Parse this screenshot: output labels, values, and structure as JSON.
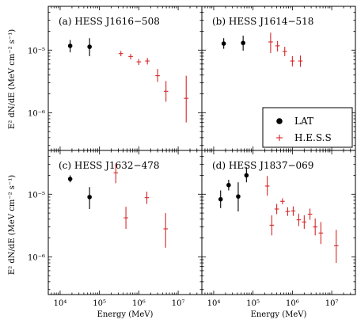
{
  "figure": {
    "xlabel": "Energy (MeV)",
    "ylabel": "E² dN/dE (MeV cm⁻² s⁻¹)",
    "legend": {
      "placement": "panel-b-lower-right",
      "entries": [
        "LAT",
        "H.E.S.S"
      ]
    },
    "colors": {
      "LAT": "#000000",
      "H.E.S.S": "#d62728"
    }
  },
  "chart_data": [
    {
      "type": "scatter",
      "title": "(a) HESS J1616−508",
      "xscale": "log",
      "yscale": "log",
      "xlim": [
        5000,
        40000000
      ],
      "ylim": [
        2.5e-07,
        5e-05
      ],
      "xticks": [
        10000,
        100000,
        1000000,
        10000000
      ],
      "xticklabels": [
        "10⁴",
        "10⁵",
        "10⁶",
        "10⁷"
      ],
      "yticks": [
        1e-06,
        1e-05
      ],
      "yticklabels": [
        "10⁻⁶",
        "10⁻⁵"
      ],
      "series": [
        {
          "name": "LAT",
          "points": [
            {
              "x": 18000,
              "y": 1.17e-05,
              "ylo": 9.2e-06,
              "yhi": 1.45e-05
            },
            {
              "x": 56000,
              "y": 1.13e-05,
              "ylo": 8e-06,
              "yhi": 1.55e-05
            }
          ]
        },
        {
          "name": "H.E.S.S",
          "points": [
            {
              "x": 350000,
              "y": 8.8e-06,
              "ylo": 8e-06,
              "yhi": 9.7e-06
            },
            {
              "x": 620000,
              "y": 7.9e-06,
              "ylo": 7.1e-06,
              "yhi": 8.7e-06
            },
            {
              "x": 1000000,
              "y": 6.5e-06,
              "ylo": 5.8e-06,
              "yhi": 7.2e-06
            },
            {
              "x": 1650000,
              "y": 6.7e-06,
              "ylo": 5.9e-06,
              "yhi": 7.5e-06
            },
            {
              "x": 3000000,
              "y": 3.9e-06,
              "ylo": 3.1e-06,
              "yhi": 5e-06
            },
            {
              "x": 4900000,
              "y": 2.2e-06,
              "ylo": 1.5e-06,
              "yhi": 3.2e-06
            },
            {
              "x": 16000000,
              "y": 1.7e-06,
              "ylo": 7e-07,
              "yhi": 3.9e-06
            }
          ]
        }
      ]
    },
    {
      "type": "scatter",
      "title": "(b) HESS J1614−518",
      "xscale": "log",
      "yscale": "log",
      "xlim": [
        5000,
        40000000
      ],
      "ylim": [
        2.5e-07,
        5e-05
      ],
      "xticks": [
        10000,
        100000,
        1000000,
        10000000
      ],
      "xticklabels": [
        "10⁴",
        "10⁵",
        "10⁶",
        "10⁷"
      ],
      "yticks": [
        1e-06,
        1e-05
      ],
      "yticklabels": [
        "10⁻⁶",
        "10⁻⁵"
      ],
      "series": [
        {
          "name": "LAT",
          "points": [
            {
              "x": 18000,
              "y": 1.27e-05,
              "ylo": 1.05e-05,
              "yhi": 1.55e-05
            },
            {
              "x": 56000,
              "y": 1.3e-05,
              "ylo": 9.8e-06,
              "yhi": 1.7e-05
            }
          ]
        },
        {
          "name": "H.E.S.S",
          "points": [
            {
              "x": 280000,
              "y": 1.35e-05,
              "ylo": 9e-06,
              "yhi": 1.9e-05
            },
            {
              "x": 420000,
              "y": 1.17e-05,
              "ylo": 9.5e-06,
              "yhi": 1.4e-05
            },
            {
              "x": 640000,
              "y": 9.5e-06,
              "ylo": 8e-06,
              "yhi": 1.13e-05
            },
            {
              "x": 1000000,
              "y": 6.7e-06,
              "ylo": 5.5e-06,
              "yhi": 8e-06
            },
            {
              "x": 1600000,
              "y": 6.7e-06,
              "ylo": 5.4e-06,
              "yhi": 8.2e-06
            }
          ]
        }
      ]
    },
    {
      "type": "scatter",
      "title": "(c) HESS J1632−478",
      "xscale": "log",
      "yscale": "log",
      "xlim": [
        5000,
        40000000
      ],
      "ylim": [
        2.5e-07,
        5e-05
      ],
      "xticks": [
        10000,
        100000,
        1000000,
        10000000
      ],
      "xticklabels": [
        "10⁴",
        "10⁵",
        "10⁶",
        "10⁷"
      ],
      "yticks": [
        1e-06,
        1e-05
      ],
      "yticklabels": [
        "10⁻⁶",
        "10⁻⁵"
      ],
      "series": [
        {
          "name": "LAT",
          "points": [
            {
              "x": 18000,
              "y": 1.75e-05,
              "ylo": 1.55e-05,
              "yhi": 2e-05
            },
            {
              "x": 56000,
              "y": 9e-06,
              "ylo": 5.8e-06,
              "yhi": 1.3e-05
            }
          ]
        },
        {
          "name": "H.E.S.S",
          "points": [
            {
              "x": 260000,
              "y": 2.2e-05,
              "ylo": 1.5e-05,
              "yhi": 3.1e-05
            },
            {
              "x": 470000,
              "y": 4.2e-06,
              "ylo": 2.8e-06,
              "yhi": 6.3e-06
            },
            {
              "x": 1600000,
              "y": 8.8e-06,
              "ylo": 7e-06,
              "yhi": 1.1e-05
            },
            {
              "x": 4800000,
              "y": 2.8e-06,
              "ylo": 1.4e-06,
              "yhi": 5e-06
            }
          ]
        }
      ]
    },
    {
      "type": "scatter",
      "title": "(d) HESS J1837−069",
      "xscale": "log",
      "yscale": "log",
      "xlim": [
        5000,
        40000000
      ],
      "ylim": [
        2.5e-07,
        5e-05
      ],
      "xticks": [
        10000,
        100000,
        1000000,
        10000000
      ],
      "xticklabels": [
        "10⁴",
        "10⁵",
        "10⁶",
        "10⁷"
      ],
      "yticks": [
        1e-06,
        1e-05
      ],
      "yticklabels": [
        "10⁻⁶",
        "10⁻⁵"
      ],
      "series": [
        {
          "name": "LAT",
          "points": [
            {
              "x": 15000,
              "y": 8.3e-06,
              "ylo": 6e-06,
              "yhi": 1.15e-05
            },
            {
              "x": 24000,
              "y": 1.4e-05,
              "ylo": 1.15e-05,
              "yhi": 1.7e-05
            },
            {
              "x": 42000,
              "y": 9.2e-06,
              "ylo": 5.3e-06,
              "yhi": 1.55e-05
            },
            {
              "x": 68000,
              "y": 2e-05,
              "ylo": 1.55e-05,
              "yhi": 2.7e-05
            }
          ]
        },
        {
          "name": "H.E.S.S",
          "points": [
            {
              "x": 230000,
              "y": 1.35e-05,
              "ylo": 9.5e-06,
              "yhi": 1.95e-05
            },
            {
              "x": 300000,
              "y": 3.2e-06,
              "ylo": 2.2e-06,
              "yhi": 4.6e-06
            },
            {
              "x": 400000,
              "y": 5.8e-06,
              "ylo": 4.8e-06,
              "yhi": 7e-06
            },
            {
              "x": 560000,
              "y": 7.7e-06,
              "ylo": 6.9e-06,
              "yhi": 8.6e-06
            },
            {
              "x": 760000,
              "y": 5.3e-06,
              "ylo": 4.5e-06,
              "yhi": 6.2e-06
            },
            {
              "x": 1050000,
              "y": 5.4e-06,
              "ylo": 4.5e-06,
              "yhi": 6.4e-06
            },
            {
              "x": 1450000,
              "y": 3.9e-06,
              "ylo": 3.1e-06,
              "yhi": 4.9e-06
            },
            {
              "x": 2000000,
              "y": 3.6e-06,
              "ylo": 2.8e-06,
              "yhi": 4.6e-06
            },
            {
              "x": 2800000,
              "y": 4.8e-06,
              "ylo": 3.9e-06,
              "yhi": 5.9e-06
            },
            {
              "x": 3800000,
              "y": 3e-06,
              "ylo": 2.2e-06,
              "yhi": 4.1e-06
            },
            {
              "x": 5300000,
              "y": 2.4e-06,
              "ylo": 1.6e-06,
              "yhi": 3.6e-06
            },
            {
              "x": 13000000,
              "y": 1.5e-06,
              "ylo": 8e-07,
              "yhi": 2.7e-06
            }
          ]
        }
      ]
    }
  ]
}
